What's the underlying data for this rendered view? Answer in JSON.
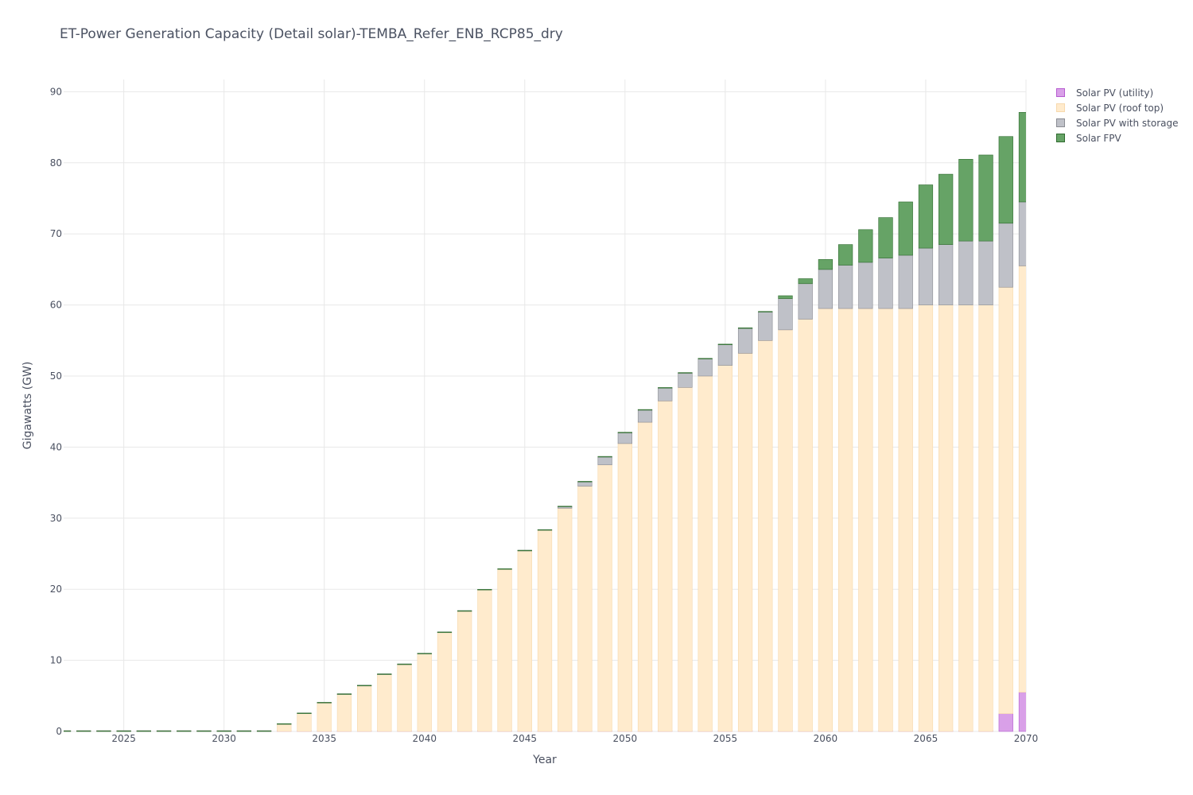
{
  "title": "ET-Power Generation Capacity (Detail solar)-TEMBA_Refer_ENB_RCP85_dry",
  "chart_data": {
    "type": "bar",
    "stacked": true,
    "xlabel": "Year",
    "ylabel": "Gigawatts (GW)",
    "xlim": [
      2022,
      2070
    ],
    "ylim": [
      0,
      92
    ],
    "x_ticks": [
      2025,
      2030,
      2035,
      2040,
      2045,
      2050,
      2055,
      2060,
      2065,
      2070
    ],
    "y_ticks": [
      0,
      10,
      20,
      30,
      40,
      50,
      60,
      70,
      80,
      90
    ],
    "grid": true,
    "legend_position": "top-right",
    "categories": [
      2022,
      2023,
      2024,
      2025,
      2026,
      2027,
      2028,
      2029,
      2030,
      2031,
      2032,
      2033,
      2034,
      2035,
      2036,
      2037,
      2038,
      2039,
      2040,
      2041,
      2042,
      2043,
      2044,
      2045,
      2046,
      2047,
      2048,
      2049,
      2050,
      2051,
      2052,
      2053,
      2054,
      2055,
      2056,
      2057,
      2058,
      2059,
      2060,
      2061,
      2062,
      2063,
      2064,
      2065,
      2066,
      2067,
      2068,
      2069,
      2070
    ],
    "series": [
      {
        "name": "Solar PV (utility)",
        "color": "#d9a0e8",
        "stroke": "#b65cd0",
        "values": [
          0,
          0,
          0,
          0,
          0,
          0,
          0,
          0,
          0,
          0,
          0,
          0,
          0,
          0,
          0,
          0,
          0,
          0,
          0,
          0,
          0,
          0,
          0,
          0,
          0,
          0,
          0,
          0,
          0,
          0,
          0,
          0,
          0,
          0,
          0,
          0,
          0,
          0,
          0,
          0,
          0,
          0,
          0,
          0,
          0,
          0,
          0,
          2.5,
          5.5
        ]
      },
      {
        "name": "Solar PV (roof top)",
        "color": "#ffebcd",
        "stroke": "#f7d9ad",
        "values": [
          0,
          0,
          0,
          0,
          0,
          0,
          0,
          0,
          0,
          0,
          0,
          1.0,
          2.5,
          4.0,
          5.2,
          6.4,
          8.0,
          9.4,
          10.9,
          13.9,
          16.9,
          19.9,
          22.8,
          25.4,
          28.3,
          31.4,
          34.5,
          37.5,
          40.5,
          43.5,
          46.5,
          48.4,
          50.0,
          51.5,
          53.2,
          55.0,
          56.5,
          58.0,
          59.5,
          59.5,
          59.5,
          59.5,
          59.5,
          60.0,
          60.0,
          60.0,
          60.0,
          60.0,
          60.0
        ]
      },
      {
        "name": "Solar PV with storage",
        "color": "#bfc1c8",
        "stroke": "#8a8c93",
        "values": [
          0,
          0,
          0,
          0,
          0,
          0,
          0,
          0,
          0,
          0,
          0,
          0,
          0,
          0,
          0,
          0,
          0,
          0,
          0,
          0,
          0,
          0,
          0,
          0,
          0,
          0.2,
          0.6,
          1.1,
          1.5,
          1.7,
          1.8,
          2.0,
          2.4,
          2.9,
          3.5,
          4.0,
          4.4,
          5.0,
          5.5,
          6.1,
          6.5,
          7.1,
          7.5,
          8.0,
          8.5,
          9.0,
          9.0,
          9.0,
          9.0
        ]
      },
      {
        "name": "Solar FPV",
        "color": "#66a366",
        "stroke": "#2f6b2f",
        "values": [
          0,
          0,
          0,
          0,
          0,
          0,
          0,
          0,
          0,
          0,
          0,
          0,
          0,
          0,
          0,
          0,
          0,
          0,
          0,
          0,
          0,
          0,
          0,
          0,
          0,
          0,
          0,
          0,
          0,
          0,
          0,
          0,
          0,
          0,
          0,
          0,
          0.4,
          0.7,
          1.4,
          2.9,
          4.6,
          5.7,
          7.5,
          8.9,
          9.9,
          11.5,
          12.1,
          12.2,
          12.6
        ]
      }
    ]
  }
}
